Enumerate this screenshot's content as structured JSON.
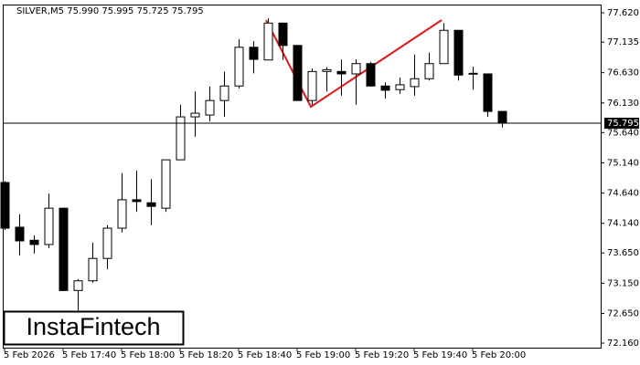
{
  "chart_data": {
    "type": "candlestick",
    "title": "SILVER,M5  75.990 75.995 75.725 75.795",
    "categories": [
      "5 Feb 2026",
      null,
      null,
      null,
      "5 Feb 17:40",
      null,
      null,
      null,
      "5 Feb 18:00",
      null,
      null,
      null,
      "5 Feb 18:20",
      null,
      null,
      null,
      "5 Feb 18:40",
      null,
      null,
      null,
      "5 Feb 19:00",
      null,
      null,
      null,
      "5 Feb 19:20",
      null,
      null,
      null,
      "5 Feb 19:40",
      null,
      null,
      null,
      "5 Feb 20:00",
      null,
      null
    ],
    "open": [
      74.815,
      74.076,
      73.86,
      73.79,
      74.39,
      73.03,
      73.19,
      73.56,
      74.06,
      74.53,
      74.48,
      74.39,
      75.19,
      75.9,
      75.93,
      76.17,
      76.41,
      77.05,
      76.84,
      77.45,
      77.08,
      76.17,
      76.65,
      76.65,
      76.61,
      76.78,
      76.41,
      76.35,
      76.4,
      76.53,
      76.78,
      77.33,
      76.62,
      76.61,
      75.99
    ],
    "high": [
      74.84,
      74.29,
      73.94,
      74.63,
      74.4,
      73.22,
      73.82,
      74.11,
      74.97,
      75.01,
      74.87,
      75.19,
      76.1,
      76.32,
      76.4,
      76.65,
      77.18,
      77.15,
      77.53,
      77.45,
      77.08,
      76.7,
      76.72,
      76.85,
      76.85,
      76.81,
      76.47,
      76.55,
      76.93,
      76.96,
      77.45,
      77.33,
      76.73,
      76.61,
      75.995
    ],
    "low": [
      74.03,
      73.61,
      73.64,
      73.73,
      73.02,
      72.7,
      73.16,
      73.38,
      73.99,
      74.33,
      74.11,
      74.33,
      75.19,
      75.57,
      75.83,
      75.9,
      76.37,
      76.62,
      76.84,
      76.84,
      76.17,
      76.1,
      76.32,
      76.25,
      76.1,
      76.4,
      76.2,
      76.28,
      76.25,
      76.5,
      76.78,
      76.5,
      76.35,
      75.9,
      75.725
    ],
    "close": [
      74.06,
      73.85,
      73.79,
      74.39,
      73.03,
      73.19,
      73.56,
      74.06,
      74.53,
      74.5,
      74.42,
      75.19,
      75.9,
      75.96,
      76.17,
      76.41,
      77.05,
      76.85,
      77.45,
      77.08,
      76.17,
      76.65,
      76.68,
      76.61,
      76.78,
      76.41,
      76.34,
      76.43,
      76.53,
      76.78,
      77.33,
      76.59,
      76.61,
      75.99,
      75.795
    ],
    "up_color": "#ffffff",
    "down_color": "#000000",
    "ylim": [
      72.085,
      77.756
    ],
    "yticks": [
      {
        "value": 72.16,
        "label": "72.160"
      },
      {
        "value": 72.65,
        "label": "72.650"
      },
      {
        "value": 73.15,
        "label": "73.150"
      },
      {
        "value": 73.65,
        "label": "73.650"
      },
      {
        "value": 74.14,
        "label": "74.140"
      },
      {
        "value": 74.64,
        "label": "74.640"
      },
      {
        "value": 75.14,
        "label": "75.140"
      },
      {
        "value": 75.64,
        "label": "75.640"
      },
      {
        "value": 76.13,
        "label": "76.130"
      },
      {
        "value": 76.63,
        "label": "76.630"
      },
      {
        "value": 77.135,
        "label": "77.135"
      },
      {
        "value": 77.62,
        "label": "77.620"
      }
    ],
    "current_price": 75.795,
    "logo": "InstaFintech"
  }
}
